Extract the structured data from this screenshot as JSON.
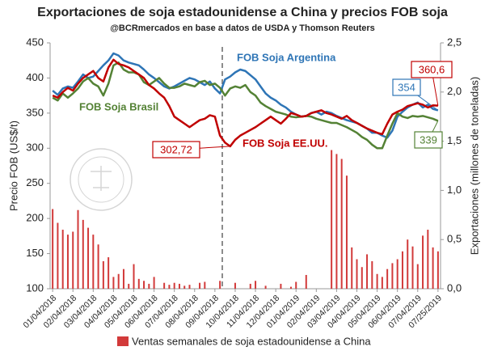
{
  "chart_data": {
    "type": "combo",
    "title": "Exportaciones de soja estadounidense a China y precios FOB soja",
    "subtitle": "@BCRmercados en base a datos de USDA y Thomson Reuters",
    "y_label": "Precio FOB (US$/t)",
    "y2_label": "Exportaciones (millones de toneladas)",
    "categories": [
      "01/04/2018",
      null,
      null,
      null,
      "02/04/2018",
      null,
      null,
      null,
      "03/04/2018",
      null,
      null,
      null,
      "04/04/2018",
      null,
      null,
      null,
      "05/04/2018",
      null,
      null,
      null,
      "06/04/2018",
      null,
      null,
      null,
      "07/04/2018",
      null,
      null,
      null,
      "08/04/2018",
      null,
      null,
      null,
      "09/04/2018",
      null,
      null,
      null,
      "10/04/2018",
      null,
      null,
      null,
      "11/04/2018",
      null,
      null,
      null,
      "12/04/2018",
      null,
      null,
      null,
      "01/04/2019",
      null,
      null,
      null,
      "02/04/2019",
      null,
      null,
      null,
      "03/04/2019",
      null,
      null,
      null,
      "04/04/2019",
      null,
      null,
      null,
      "05/04/2019",
      null,
      null,
      null,
      "06/04/2019",
      null,
      null,
      null,
      "07/04/2019",
      null,
      null,
      null,
      "07/25/2019"
    ],
    "ylim": [
      100,
      450
    ],
    "yticks": [
      100,
      150,
      200,
      250,
      300,
      350,
      400,
      450
    ],
    "y2lim": [
      0,
      2.5
    ],
    "y2ticks": [
      {
        "value": 0,
        "label": "0,0"
      },
      {
        "value": 0.5,
        "label": "0,5"
      },
      {
        "value": 1,
        "label": "1,0"
      },
      {
        "value": 1.5,
        "label": "1,5"
      },
      {
        "value": 2,
        "label": "2,0"
      },
      {
        "value": 2.5,
        "label": "2,5"
      }
    ],
    "series": [
      {
        "name": "Ventas semanales de soja estadounidense a China",
        "type": "bar",
        "axis": "y2",
        "color": "#d23a3a",
        "values": [
          0.81,
          0.67,
          0.6,
          0.55,
          0.58,
          0.8,
          0.7,
          0.62,
          0.55,
          0.45,
          0.28,
          0.32,
          0.12,
          0.15,
          0.2,
          0.05,
          0.25,
          0.1,
          0.08,
          0.05,
          0.12,
          0,
          0.06,
          0.04,
          0.06,
          0.05,
          0.03,
          0.04,
          0,
          0.06,
          0.07,
          0,
          0,
          0.08,
          0,
          0,
          0.06,
          0,
          0,
          0.05,
          0.08,
          0,
          0.03,
          0,
          0,
          0.05,
          0,
          0.02,
          0.07,
          0,
          0.14,
          0,
          0,
          0,
          0,
          1.41,
          1.37,
          1.32,
          1.15,
          0.42,
          0.3,
          0.22,
          0.35,
          0.28,
          0.15,
          0.12,
          0.2,
          0.26,
          0.3,
          0.38,
          0.5,
          0.43,
          0.25,
          0.54,
          0.6,
          0.42,
          0.38
        ]
      },
      {
        "name": "FOB Soja Argentina",
        "type": "line",
        "color": "#2e75b6",
        "values": [
          382,
          376,
          385,
          388,
          386,
          395,
          405,
          400,
          402,
          410,
          418,
          425,
          435,
          432,
          425,
          422,
          420,
          418,
          412,
          405,
          400,
          394,
          388,
          385,
          388,
          392,
          396,
          400,
          398,
          394,
          390,
          395,
          385,
          378,
          398,
          402,
          408,
          412,
          410,
          404,
          398,
          388,
          378,
          372,
          368,
          362,
          358,
          352,
          348,
          345,
          346,
          350,
          352,
          348,
          352,
          350,
          346,
          343,
          340,
          338,
          336,
          332,
          328,
          322,
          322,
          318,
          315,
          325,
          345,
          352,
          358,
          362,
          365,
          358,
          362,
          356,
          354
        ],
        "value_labels": [
          null,
          null,
          null,
          null,
          null,
          null,
          null,
          null,
          null,
          null,
          null,
          null,
          null,
          null,
          null,
          null,
          null,
          null,
          null,
          null,
          null,
          null,
          null,
          null,
          null,
          null,
          null,
          null,
          null,
          null,
          null,
          null,
          null,
          null,
          null,
          null,
          null,
          null,
          null,
          null,
          null,
          null,
          null,
          null,
          null,
          null,
          null,
          null,
          null,
          null,
          null,
          null,
          null,
          null,
          null,
          null,
          null,
          null,
          null,
          null,
          null,
          null,
          null,
          null,
          null,
          null,
          null,
          null,
          null,
          null,
          null,
          null,
          null,
          null,
          null,
          null,
          "354"
        ]
      },
      {
        "name": "FOB Soja Brasil",
        "type": "line",
        "color": "#548235",
        "values": [
          372,
          368,
          378,
          372,
          378,
          385,
          395,
          400,
          392,
          388,
          375,
          392,
          418,
          422,
          412,
          408,
          408,
          405,
          394,
          390,
          395,
          400,
          392,
          386,
          386,
          388,
          392,
          390,
          388,
          394,
          396,
          390,
          392,
          386,
          375,
          385,
          388,
          386,
          390,
          380,
          375,
          365,
          360,
          356,
          352,
          350,
          348,
          345,
          344,
          345,
          346,
          345,
          342,
          340,
          338,
          336,
          336,
          333,
          330,
          326,
          322,
          316,
          312,
          305,
          300,
          300,
          318,
          335,
          350,
          345,
          343,
          346,
          345,
          346,
          344,
          342,
          339
        ],
        "value_labels": [
          null,
          null,
          null,
          null,
          null,
          null,
          null,
          null,
          null,
          null,
          null,
          null,
          null,
          null,
          null,
          null,
          null,
          null,
          null,
          null,
          null,
          null,
          null,
          null,
          null,
          null,
          null,
          null,
          null,
          null,
          null,
          null,
          null,
          null,
          null,
          null,
          null,
          null,
          null,
          null,
          null,
          null,
          null,
          null,
          null,
          null,
          null,
          null,
          null,
          null,
          null,
          null,
          null,
          null,
          null,
          null,
          null,
          null,
          null,
          null,
          null,
          null,
          null,
          null,
          null,
          null,
          null,
          null,
          null,
          null,
          null,
          null,
          null,
          null,
          null,
          null,
          "339"
        ]
      },
      {
        "name": "FOB Soja EE.UU.",
        "type": "line",
        "color": "#c00000",
        "values": [
          375,
          372,
          380,
          386,
          382,
          392,
          400,
          405,
          410,
          400,
          395,
          415,
          426,
          420,
          418,
          415,
          410,
          405,
          400,
          390,
          385,
          378,
          372,
          360,
          345,
          340,
          335,
          330,
          335,
          340,
          342,
          347,
          345,
          318,
          308,
          302.72,
          312,
          318,
          322,
          326,
          330,
          335,
          340,
          345,
          340,
          335,
          342,
          350,
          348,
          345,
          346,
          350,
          352,
          354,
          350,
          348,
          345,
          342,
          346,
          340,
          336,
          332,
          328,
          325,
          322,
          320,
          335,
          348,
          352,
          355,
          360,
          362,
          364,
          362,
          358,
          361,
          360.6
        ],
        "value_labels": [
          null,
          null,
          null,
          null,
          null,
          null,
          null,
          null,
          null,
          null,
          null,
          null,
          null,
          null,
          null,
          null,
          null,
          null,
          null,
          null,
          null,
          null,
          null,
          null,
          null,
          null,
          null,
          null,
          null,
          null,
          null,
          null,
          null,
          null,
          null,
          "302,72",
          null,
          null,
          null,
          null,
          null,
          null,
          null,
          null,
          null,
          null,
          null,
          null,
          null,
          null,
          null,
          null,
          null,
          null,
          null,
          null,
          null,
          null,
          null,
          null,
          null,
          null,
          null,
          null,
          null,
          null,
          null,
          null,
          null,
          null,
          null,
          null,
          null,
          null,
          null,
          null,
          "360,6"
        ]
      }
    ]
  }
}
